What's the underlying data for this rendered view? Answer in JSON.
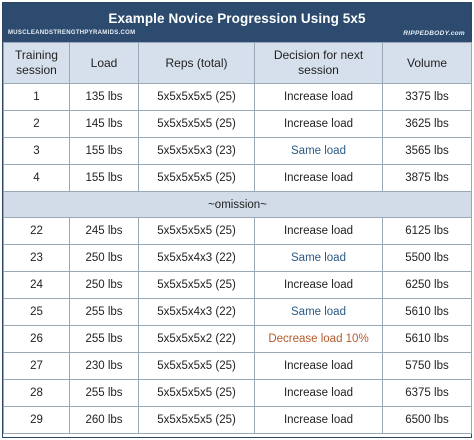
{
  "header": {
    "title": "Example Novice Progression Using 5x5",
    "site_left": "MUSCLEANDSTRENGTHPYRAMIDS.COM",
    "site_right": "RIPPEDBODY.com"
  },
  "table": {
    "columns": [
      "Training session",
      "Load",
      "Reps (total)",
      "Decision for next session",
      "Volume"
    ],
    "rows_top": [
      {
        "session": "1",
        "load": "135 lbs",
        "reps": "5x5x5x5x5 (25)",
        "decision": "Increase load",
        "decision_color": "normal",
        "volume": "3375 lbs"
      },
      {
        "session": "2",
        "load": "145 lbs",
        "reps": "5x5x5x5x5 (25)",
        "decision": "Increase load",
        "decision_color": "normal",
        "volume": "3625 lbs"
      },
      {
        "session": "3",
        "load": "155 lbs",
        "reps": "5x5x5x5x3 (23)",
        "decision": "Same load",
        "decision_color": "blue",
        "volume": "3565 lbs"
      },
      {
        "session": "4",
        "load": "155 lbs",
        "reps": "5x5x5x5x5 (25)",
        "decision": "Increase load",
        "decision_color": "normal",
        "volume": "3875 lbs"
      }
    ],
    "separator": "~omission~",
    "rows_bottom": [
      {
        "session": "22",
        "load": "245 lbs",
        "reps": "5x5x5x5x5 (25)",
        "decision": "Increase load",
        "decision_color": "normal",
        "volume": "6125 lbs"
      },
      {
        "session": "23",
        "load": "250 lbs",
        "reps": "5x5x5x4x3 (22)",
        "decision": "Same load",
        "decision_color": "blue",
        "volume": "5500 lbs"
      },
      {
        "session": "24",
        "load": "250 lbs",
        "reps": "5x5x5x5x5 (25)",
        "decision": "Increase load",
        "decision_color": "normal",
        "volume": "6250 lbs"
      },
      {
        "session": "25",
        "load": "255 lbs",
        "reps": "5x5x5x4x3 (22)",
        "decision": "Same load",
        "decision_color": "blue",
        "volume": "5610 lbs"
      },
      {
        "session": "26",
        "load": "255 lbs",
        "reps": "5x5x5x5x2 (22)",
        "decision": "Decrease load 10%",
        "decision_color": "red",
        "volume": "5610 lbs"
      },
      {
        "session": "27",
        "load": "230 lbs",
        "reps": "5x5x5x5x5 (25)",
        "decision": "Increase load",
        "decision_color": "normal",
        "volume": "5750 lbs"
      },
      {
        "session": "28",
        "load": "255 lbs",
        "reps": "5x5x5x5x5 (25)",
        "decision": "Increase load",
        "decision_color": "normal",
        "volume": "6375 lbs"
      },
      {
        "session": "29",
        "load": "260 lbs",
        "reps": "5x5x5x5x5 (25)",
        "decision": "Increase load",
        "decision_color": "normal",
        "volume": "6500 lbs"
      }
    ]
  },
  "colors": {
    "header_bg": "#2c4b6e",
    "column_header_bg": "#d6e0ec",
    "separator_bg": "#d2dce9",
    "same_load_text": "#2a5a84",
    "decrease_load_text": "#b65a2a"
  }
}
